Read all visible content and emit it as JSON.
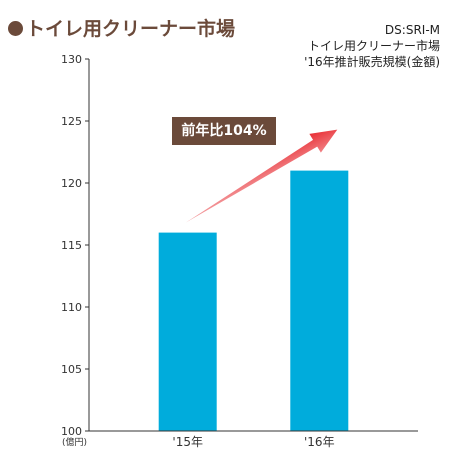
{
  "header": {
    "title": "トイレ用クリーナー市場"
  },
  "source_note": {
    "line1": "DS:SRI-M",
    "line2": "トイレ用クリーナー市場",
    "line3": "'16年推計販売規模(金額)"
  },
  "callout": {
    "text": "前年比104%"
  },
  "colors": {
    "bar": "#00acdc",
    "title": "#6b4a3a",
    "callout_bg": "#6b4a3a",
    "arrow": "#e8232a"
  },
  "chart_data": {
    "type": "bar",
    "categories": [
      "'15年",
      "'16年"
    ],
    "values": [
      116,
      121
    ],
    "unit_label": "(億円)",
    "ylim": [
      100,
      130
    ],
    "yticks": [
      100,
      105,
      110,
      115,
      120,
      125,
      130
    ],
    "grid": false,
    "legend": "none",
    "annotation": "前年比104%"
  }
}
